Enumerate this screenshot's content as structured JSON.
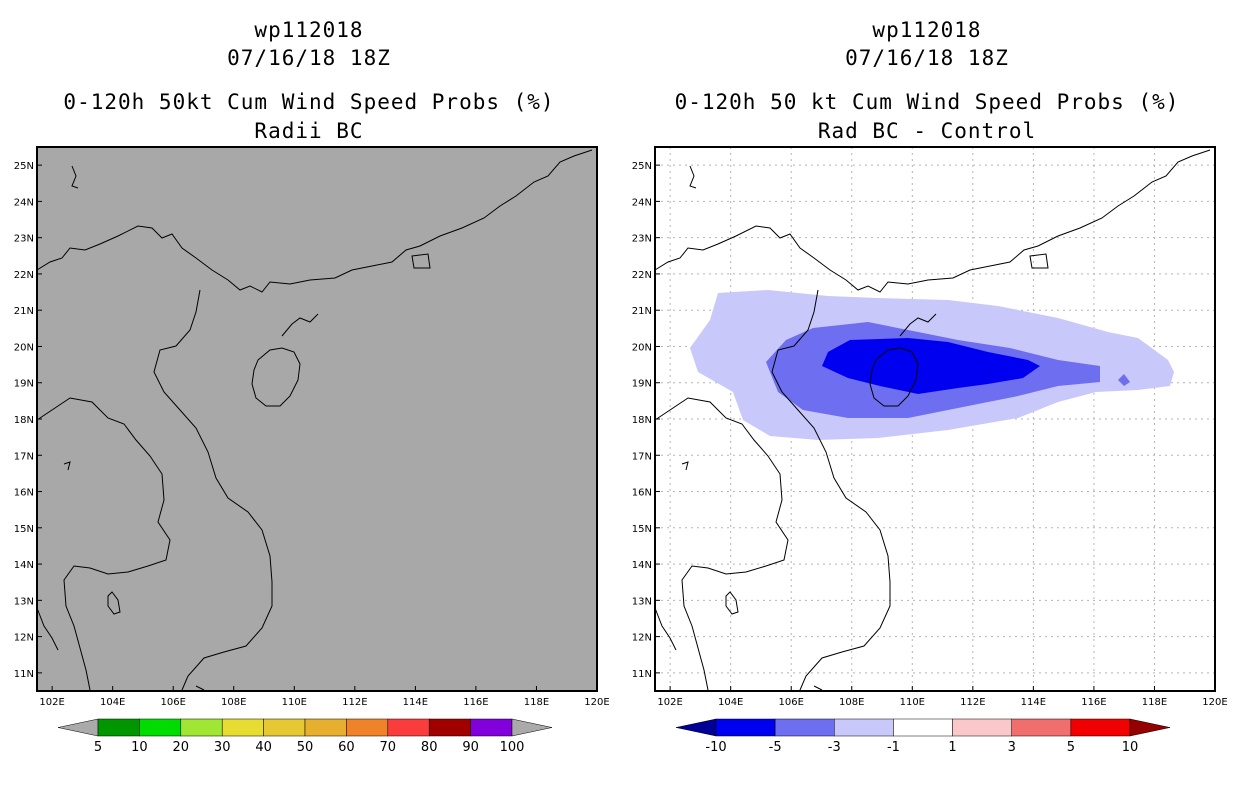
{
  "left_panel": {
    "title_line1": "wp112018",
    "title_line2": "07/16/18 18Z",
    "title_line3": "0-120h 50kt Cum Wind Speed Probs (%)",
    "title_line4": "Radii BC",
    "background_color": "#a8a8a8",
    "colorbar": {
      "labels": [
        "5",
        "10",
        "20",
        "30",
        "40",
        "50",
        "60",
        "70",
        "80",
        "90",
        "100"
      ],
      "colors": [
        "#aaaaaa",
        "#009600",
        "#00dc00",
        "#a0e632",
        "#e6dc32",
        "#e6c832",
        "#e6af2d",
        "#f08228",
        "#fa3c3c",
        "#a00000",
        "#8200dc",
        "#aaaaaa"
      ]
    }
  },
  "right_panel": {
    "title_line1": "wp112018",
    "title_line2": "07/16/18 18Z",
    "title_line3": "0-120h 50 kt Cum Wind Speed Probs (%)",
    "title_line4": "Rad BC - Control",
    "background_color": "#ffffff",
    "colorbar": {
      "labels": [
        "-10",
        "-5",
        "-3",
        "-1",
        "1",
        "3",
        "5",
        "10"
      ],
      "colors": [
        "#000096",
        "#0000f0",
        "#6e6ef0",
        "#c8c8fa",
        "#ffffff",
        "#fac8c8",
        "#f06e6e",
        "#f00000",
        "#960000"
      ]
    },
    "contours": [
      {
        "level": "-1 to -3",
        "color": "#c8c8fa"
      },
      {
        "level": "-3 to -5",
        "color": "#6e6ef0"
      },
      {
        "level": "-5 to -10",
        "color": "#0000f0"
      }
    ]
  },
  "map": {
    "x_ticks": [
      "102E",
      "104E",
      "106E",
      "108E",
      "110E",
      "112E",
      "114E",
      "116E",
      "118E",
      "120E"
    ],
    "y_ticks": [
      "11N",
      "12N",
      "13N",
      "14N",
      "15N",
      "16N",
      "17N",
      "18N",
      "19N",
      "20N",
      "21N",
      "22N",
      "23N",
      "24N",
      "25N"
    ]
  }
}
